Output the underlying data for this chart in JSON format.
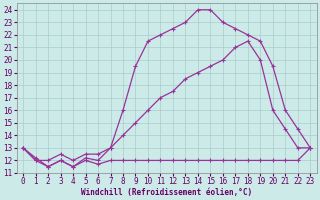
{
  "xlabel": "Windchill (Refroidissement éolien,°C)",
  "bg_color": "#cceae8",
  "grid_color": "#aacccc",
  "line_color": "#993399",
  "xlim": [
    -0.5,
    23.5
  ],
  "ylim": [
    11,
    24.5
  ],
  "xticks": [
    0,
    1,
    2,
    3,
    4,
    5,
    6,
    7,
    8,
    9,
    10,
    11,
    12,
    13,
    14,
    15,
    16,
    17,
    18,
    19,
    20,
    21,
    22,
    23
  ],
  "yticks": [
    11,
    12,
    13,
    14,
    15,
    16,
    17,
    18,
    19,
    20,
    21,
    22,
    23,
    24
  ],
  "line1_x": [
    0,
    1,
    2,
    3,
    4,
    5,
    6,
    7,
    8,
    9,
    10,
    11,
    12,
    13,
    14,
    15,
    16,
    17,
    18,
    19,
    20,
    21,
    22,
    23
  ],
  "line1_y": [
    13.0,
    12.0,
    11.5,
    12.0,
    11.5,
    12.0,
    11.7,
    12.0,
    12.0,
    12.0,
    12.0,
    12.0,
    12.0,
    12.0,
    12.0,
    12.0,
    12.0,
    12.0,
    12.0,
    12.0,
    12.0,
    12.0,
    12.0,
    13.0
  ],
  "line2_x": [
    0,
    1,
    2,
    3,
    4,
    5,
    6,
    7,
    8,
    9,
    10,
    11,
    12,
    13,
    14,
    15,
    16,
    17,
    18,
    19,
    20,
    21,
    22,
    23
  ],
  "line2_y": [
    13.0,
    12.0,
    12.0,
    12.5,
    12.0,
    12.5,
    12.5,
    13.0,
    14.0,
    15.0,
    16.0,
    17.0,
    17.5,
    18.5,
    19.0,
    19.5,
    20.0,
    21.0,
    21.5,
    20.0,
    16.0,
    14.5,
    13.0,
    13.0
  ],
  "line3_x": [
    0,
    1,
    2,
    3,
    4,
    5,
    6,
    7,
    8,
    9,
    10,
    11,
    12,
    13,
    14,
    15,
    16,
    17,
    18,
    19,
    20,
    21,
    22,
    23
  ],
  "line3_y": [
    13.0,
    12.2,
    11.5,
    12.0,
    11.5,
    12.2,
    12.0,
    13.0,
    16.0,
    19.5,
    21.5,
    22.0,
    22.5,
    23.0,
    24.0,
    24.0,
    23.0,
    22.5,
    22.0,
    21.5,
    19.5,
    16.0,
    14.5,
    13.0
  ]
}
